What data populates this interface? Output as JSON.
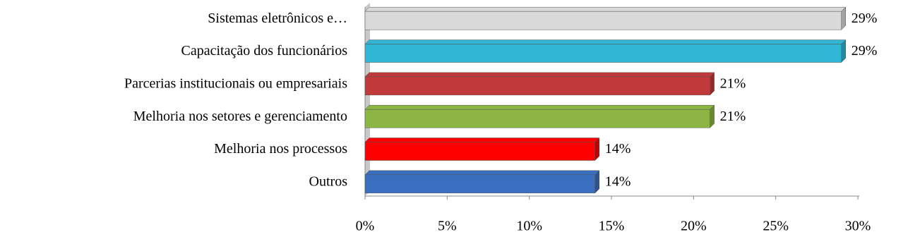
{
  "chart_data": {
    "type": "bar",
    "orientation": "horizontal",
    "categories": [
      "Sistemas eletrônicos e…",
      "Capacitação dos funcionários",
      "Parcerias institucionais ou empresariais",
      "Melhoria nos setores e gerenciamento",
      "Melhoria nos processos",
      "Outros"
    ],
    "values": [
      29,
      29,
      21,
      21,
      14,
      14
    ],
    "value_labels": [
      "29%",
      "29%",
      "21%",
      "21%",
      "14%",
      "14%"
    ],
    "colors": [
      "#d9d9d9",
      "#31b6d6",
      "#c0393b",
      "#8db543",
      "#ff0000",
      "#3a6fc0"
    ],
    "xlim": [
      0,
      30
    ],
    "xticks": [
      {
        "value": 0,
        "label": "0%"
      },
      {
        "value": 5,
        "label": "5%"
      },
      {
        "value": 10,
        "label": "10%"
      },
      {
        "value": 15,
        "label": "15%"
      },
      {
        "value": 20,
        "label": "20%"
      },
      {
        "value": 25,
        "label": "25%"
      },
      {
        "value": 30,
        "label": "30%"
      }
    ],
    "grid": false
  }
}
